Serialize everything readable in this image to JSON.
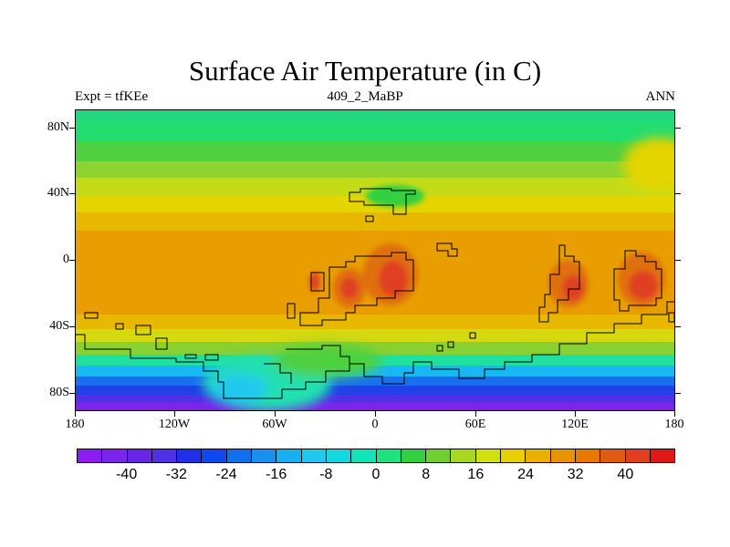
{
  "title": "Surface Air Temperature (in C)",
  "subtitle_left": "Expt = tfKEe",
  "subtitle_center": "409_2_MaBP",
  "subtitle_right": "ANN",
  "lat_labels": [
    "80N",
    "40N",
    "0",
    "40S",
    "80S"
  ],
  "lat_values": [
    80,
    40,
    0,
    -40,
    -80
  ],
  "lon_labels": [
    "180",
    "120W",
    "60W",
    "0",
    "60E",
    "120E",
    "180"
  ],
  "lon_values": [
    -180,
    -120,
    -60,
    0,
    60,
    120,
    180
  ],
  "colorbar": {
    "labels": [
      "-40",
      "-32",
      "-24",
      "-16",
      "-8",
      "0",
      "8",
      "16",
      "24",
      "32",
      "40"
    ],
    "label_values": [
      -40,
      -32,
      -24,
      -16,
      -8,
      0,
      8,
      16,
      24,
      32,
      40
    ],
    "levels_min": -48,
    "levels_step": 4,
    "colors": [
      "#8c1cf0",
      "#7a24ec",
      "#6626e6",
      "#5030e4",
      "#2030e8",
      "#1048f0",
      "#1070f0",
      "#1890f0",
      "#18b0f0",
      "#20c8f0",
      "#14d8e0",
      "#10e4b8",
      "#20e080",
      "#30d040",
      "#70d030",
      "#a8d820",
      "#d0e010",
      "#e8d000",
      "#e8b000",
      "#e89400",
      "#e87800",
      "#e05a10",
      "#e04020",
      "#e01818"
    ]
  }
}
